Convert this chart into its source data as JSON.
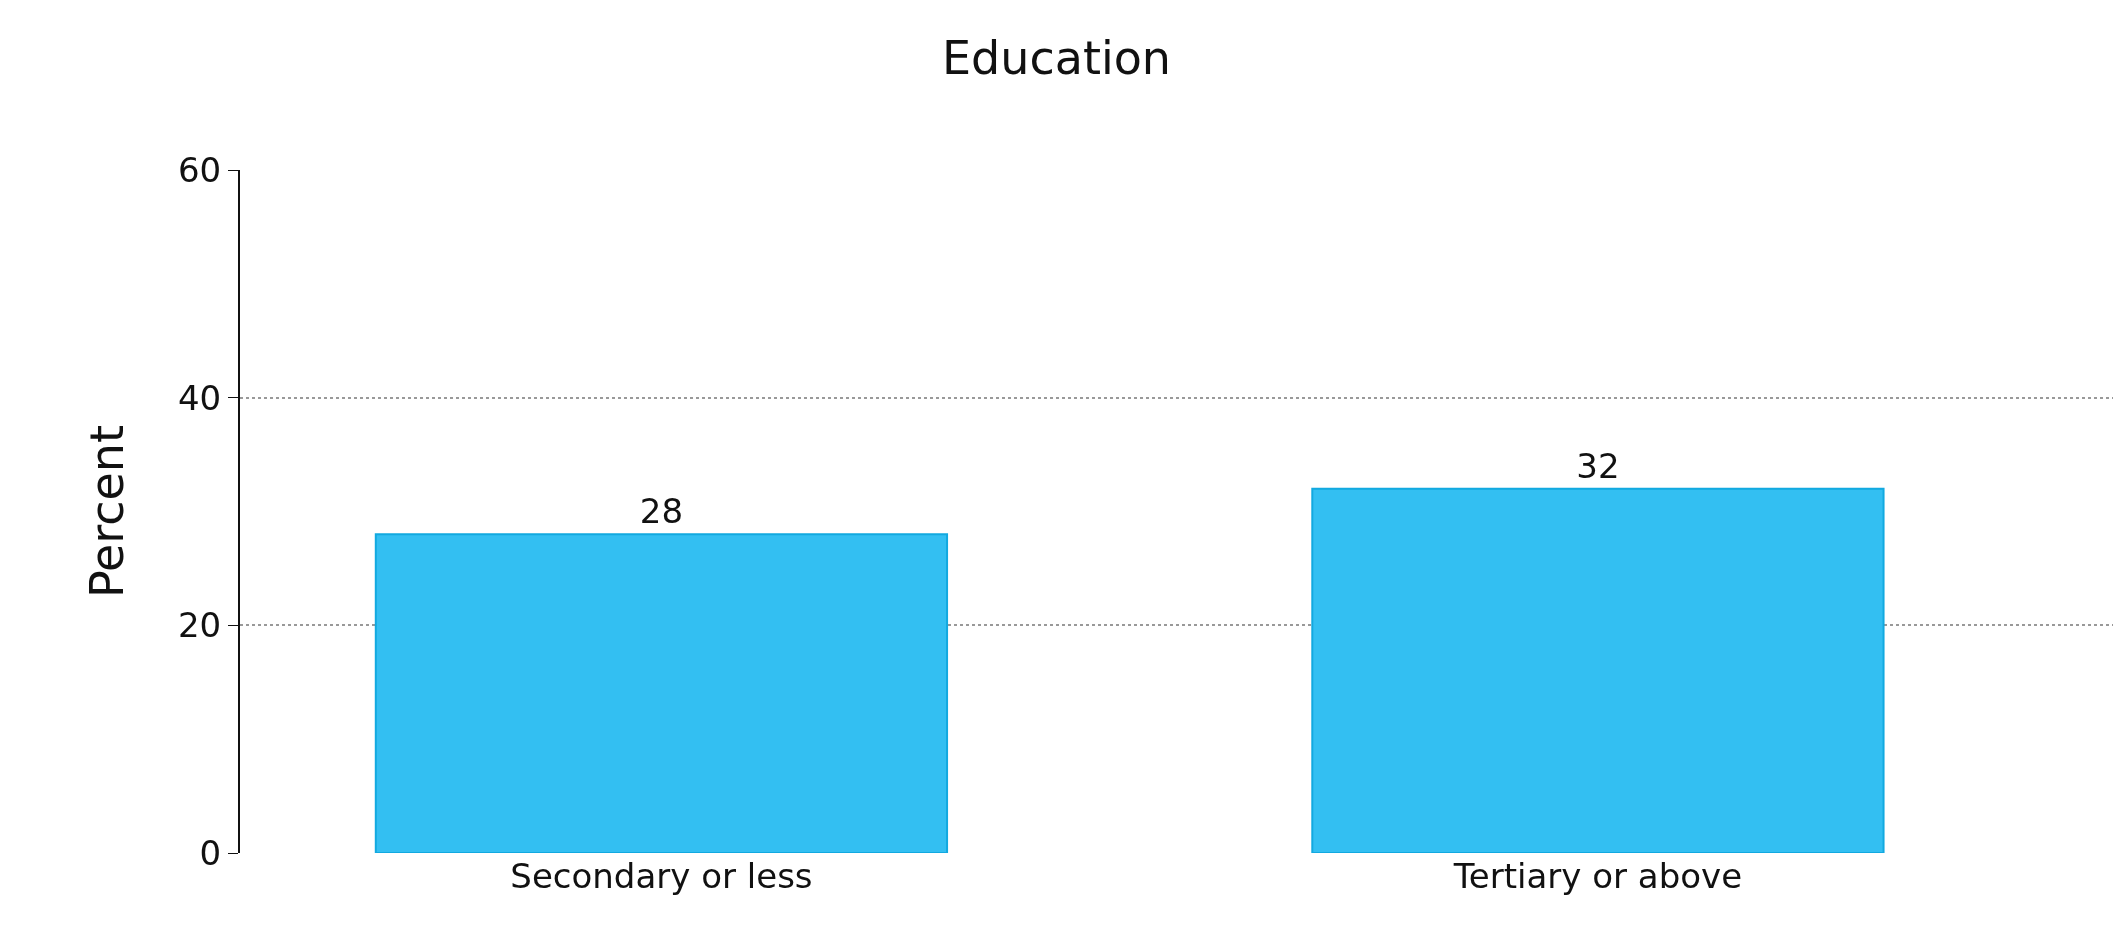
{
  "chart_data": {
    "type": "bar",
    "title": "Education",
    "ylabel": "Percent",
    "categories": [
      "Secondary or less",
      "Tertiary or above"
    ],
    "values": [
      28,
      32
    ],
    "color": "#33bff2",
    "ylim": [
      0,
      60
    ],
    "yticks": [
      0,
      20,
      40,
      60
    ],
    "grid": "y",
    "data_labels": true
  }
}
